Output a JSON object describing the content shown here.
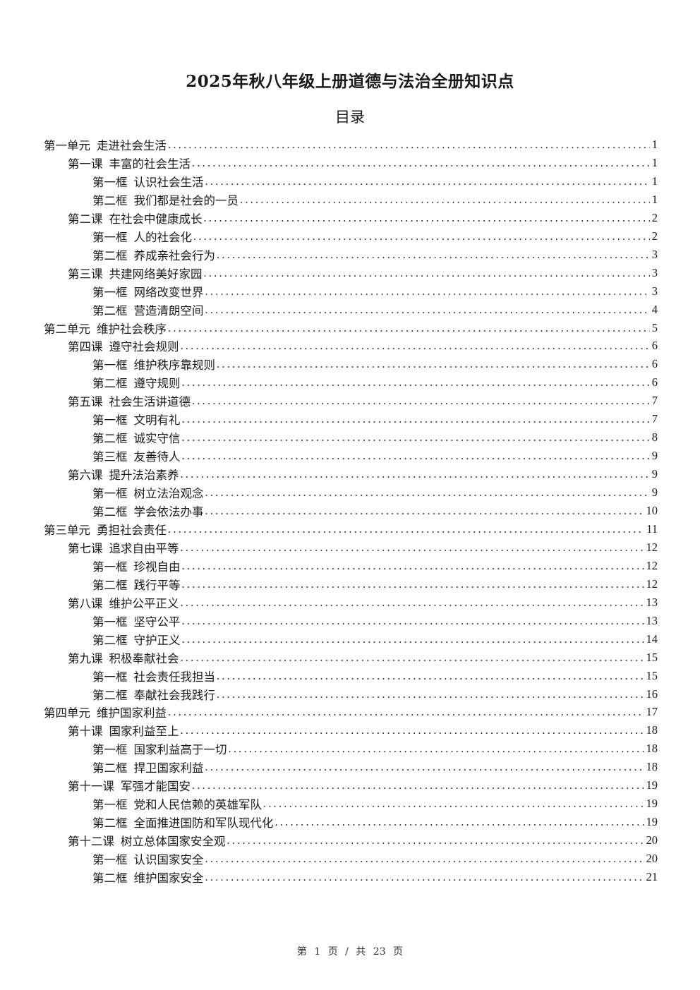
{
  "document": {
    "title": "2025年秋八年级上册道德与法治全册知识点",
    "toc_heading": "目录",
    "toc": [
      {
        "level": 0,
        "num": "第一单元",
        "text": "走进社会生活",
        "page": "1"
      },
      {
        "level": 1,
        "num": "第一课",
        "text": "丰富的社会生活",
        "page": "1"
      },
      {
        "level": 2,
        "num": "第一框",
        "text": "认识社会生活",
        "page": "1"
      },
      {
        "level": 2,
        "num": "第二框",
        "text": "我们都是社会的一员",
        "page": "1"
      },
      {
        "level": 1,
        "num": "第二课",
        "text": "在社会中健康成长",
        "page": "2"
      },
      {
        "level": 2,
        "num": "第一框",
        "text": "人的社会化",
        "page": "2"
      },
      {
        "level": 2,
        "num": "第二框",
        "text": "养成亲社会行为",
        "page": "3"
      },
      {
        "level": 1,
        "num": "第三课",
        "text": "共建网络美好家园",
        "page": "3"
      },
      {
        "level": 2,
        "num": "第一框",
        "text": "网络改变世界",
        "page": "3"
      },
      {
        "level": 2,
        "num": "第二框",
        "text": "营造清朗空间",
        "page": "4"
      },
      {
        "level": 0,
        "num": "第二单元",
        "text": "维护社会秩序",
        "page": "5"
      },
      {
        "level": 1,
        "num": "第四课",
        "text": "遵守社会规则",
        "page": "6"
      },
      {
        "level": 2,
        "num": "第一框",
        "text": "维护秩序靠规则",
        "page": "6"
      },
      {
        "level": 2,
        "num": "第二框",
        "text": "遵守规则",
        "page": "6"
      },
      {
        "level": 1,
        "num": "第五课",
        "text": "社会生活讲道德",
        "page": "7"
      },
      {
        "level": 2,
        "num": "第一框",
        "text": "文明有礼",
        "page": "7"
      },
      {
        "level": 2,
        "num": "第二框",
        "text": "诚实守信",
        "page": "8"
      },
      {
        "level": 2,
        "num": "第三框",
        "text": "友善待人",
        "page": "9"
      },
      {
        "level": 1,
        "num": "第六课",
        "text": "提升法治素养",
        "page": "9"
      },
      {
        "level": 2,
        "num": "第一框",
        "text": "树立法治观念",
        "page": "9"
      },
      {
        "level": 2,
        "num": "第二框",
        "text": "学会依法办事",
        "page": "10"
      },
      {
        "level": 0,
        "num": "第三单元",
        "text": "勇担社会责任",
        "page": "11"
      },
      {
        "level": 1,
        "num": "第七课",
        "text": "追求自由平等",
        "page": "12"
      },
      {
        "level": 2,
        "num": "第一框",
        "text": "珍视自由",
        "page": "12"
      },
      {
        "level": 2,
        "num": "第二框",
        "text": "践行平等",
        "page": "12"
      },
      {
        "level": 1,
        "num": "第八课",
        "text": "维护公平正义",
        "page": "13"
      },
      {
        "level": 2,
        "num": "第一框",
        "text": "坚守公平",
        "page": "13"
      },
      {
        "level": 2,
        "num": "第二框",
        "text": "守护正义",
        "page": "14"
      },
      {
        "level": 1,
        "num": "第九课",
        "text": "积极奉献社会",
        "page": "15"
      },
      {
        "level": 2,
        "num": "第一框",
        "text": "社会责任我担当",
        "page": "15"
      },
      {
        "level": 2,
        "num": "第二框",
        "text": "奉献社会我践行",
        "page": "16"
      },
      {
        "level": 0,
        "num": "第四单元",
        "text": "维护国家利益",
        "page": "17"
      },
      {
        "level": 1,
        "num": "第十课",
        "text": "国家利益至上",
        "page": "18"
      },
      {
        "level": 2,
        "num": "第一框",
        "text": "国家利益高于一切",
        "page": "18"
      },
      {
        "level": 2,
        "num": "第二框",
        "text": "捍卫国家利益",
        "page": "18"
      },
      {
        "level": 1,
        "num": "第十一课",
        "text": "军强才能国安",
        "page": "19"
      },
      {
        "level": 2,
        "num": "第一框",
        "text": "党和人民信赖的英雄军队",
        "page": "19"
      },
      {
        "level": 2,
        "num": "第二框",
        "text": "全面推进国防和军队现代化",
        "page": "19"
      },
      {
        "level": 1,
        "num": "第十二课",
        "text": "树立总体国家安全观",
        "page": "20"
      },
      {
        "level": 2,
        "num": "第一框",
        "text": "认识国家安全",
        "page": "20"
      },
      {
        "level": 2,
        "num": "第二框",
        "text": "维护国家安全",
        "page": "21"
      }
    ],
    "footer": "第 1 页 / 共 23 页"
  }
}
